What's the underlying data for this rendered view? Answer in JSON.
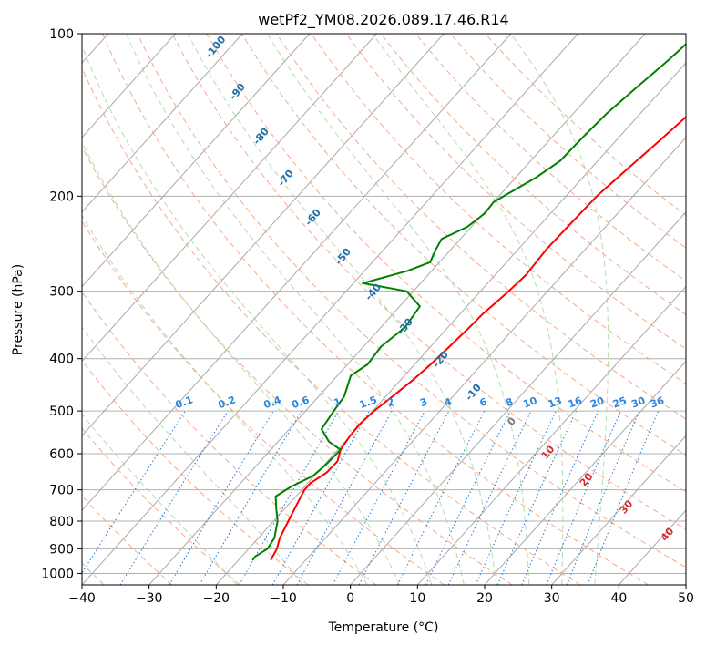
{
  "chart_data": {
    "type": "line",
    "subtype": "skew-t log-p",
    "title": "wetPf2_YM08.2026.089.17.46.R14",
    "xlabel": "Temperature (°C)",
    "ylabel": "Pressure (hPa)",
    "xlim": [
      -40,
      50
    ],
    "ylim": [
      1050,
      100
    ],
    "yscale": "log",
    "x_ticks": [
      -40,
      -30,
      -20,
      -10,
      0,
      10,
      20,
      30,
      40,
      50
    ],
    "y_ticks": [
      1000,
      900,
      800,
      700,
      600,
      500,
      400,
      300,
      200,
      100
    ],
    "grid": true,
    "series": [
      {
        "color": "#ff0000",
        "points": [
          [
            -15.2,
            945
          ],
          [
            -15.8,
            900
          ],
          [
            -16.8,
            860
          ],
          [
            -17.8,
            800
          ],
          [
            -18.5,
            760
          ],
          [
            -19.6,
            700
          ],
          [
            -19.6,
            680
          ],
          [
            -18.6,
            650
          ],
          [
            -18.5,
            620
          ],
          [
            -19.6,
            590
          ],
          [
            -20.0,
            560
          ],
          [
            -20.2,
            530
          ],
          [
            -19.8,
            500
          ],
          [
            -19.0,
            470
          ],
          [
            -18.2,
            440
          ],
          [
            -17.6,
            410
          ],
          [
            -17.2,
            380
          ],
          [
            -16.8,
            350
          ],
          [
            -16.6,
            330
          ],
          [
            -15.8,
            300
          ],
          [
            -15.4,
            280
          ],
          [
            -15.8,
            250
          ],
          [
            -15.6,
            220
          ],
          [
            -15.4,
            200
          ],
          [
            -14.6,
            180
          ],
          [
            -13.6,
            160
          ],
          [
            -12.6,
            140
          ],
          [
            -11.6,
            120
          ],
          [
            -10.8,
            100
          ]
        ]
      },
      {
        "color": "#008000",
        "points": [
          [
            -17.9,
            945
          ],
          [
            -18.0,
            930
          ],
          [
            -17.2,
            900
          ],
          [
            -17.6,
            860
          ],
          [
            -19.4,
            800
          ],
          [
            -21.2,
            760
          ],
          [
            -23.0,
            720
          ],
          [
            -22.0,
            690
          ],
          [
            -20.2,
            660
          ],
          [
            -19.8,
            630
          ],
          [
            -19.6,
            590
          ],
          [
            -22.4,
            570
          ],
          [
            -25.2,
            540
          ],
          [
            -25.8,
            500
          ],
          [
            -26.2,
            470
          ],
          [
            -28.0,
            430
          ],
          [
            -27.0,
            410
          ],
          [
            -27.4,
            380
          ],
          [
            -26.4,
            350
          ],
          [
            -27.0,
            320
          ],
          [
            -31.0,
            300
          ],
          [
            -38.6,
            290
          ],
          [
            -33.6,
            275
          ],
          [
            -31.4,
            265
          ],
          [
            -32.2,
            252
          ],
          [
            -32.8,
            240
          ],
          [
            -30.6,
            228
          ],
          [
            -29.8,
            215
          ],
          [
            -30.0,
            205
          ],
          [
            -29.0,
            198
          ],
          [
            -27.0,
            185
          ],
          [
            -25.6,
            172
          ],
          [
            -25.4,
            155
          ],
          [
            -25.0,
            140
          ],
          [
            -24.0,
            125
          ],
          [
            -23.0,
            112
          ],
          [
            -22.2,
            100
          ]
        ]
      }
    ],
    "dry_adiabats": [
      -30,
      -20,
      -10,
      0,
      10,
      20,
      30,
      40,
      50,
      60,
      70,
      80,
      90,
      100,
      110,
      120,
      130,
      140,
      150
    ],
    "moist_adiabats": [
      -20,
      -10,
      0,
      5,
      10,
      15,
      20,
      25,
      30,
      35
    ],
    "mixing_ratio": {
      "values": [
        0.1,
        0.2,
        0.4,
        0.6,
        1,
        1.5,
        2,
        3,
        4,
        6,
        8,
        10,
        13,
        16,
        20,
        25,
        30,
        36
      ],
      "labels": [
        "0.1",
        "0.2",
        "0.4",
        "0.6",
        "1",
        "1.5",
        "2",
        "3",
        "4",
        "6",
        "8",
        "10",
        "13",
        "16",
        "20",
        "25",
        "30",
        "36"
      ],
      "label_pressure": 500
    },
    "isotherm_labels_blue": [
      "-100",
      "-90",
      "-80",
      "-70",
      "-60",
      "-50",
      "-40",
      "-30",
      "-20",
      "-10"
    ],
    "isotherm_labels_gray": [
      "0"
    ],
    "isotherm_labels_red": [
      "10",
      "20",
      "30",
      "40"
    ]
  }
}
